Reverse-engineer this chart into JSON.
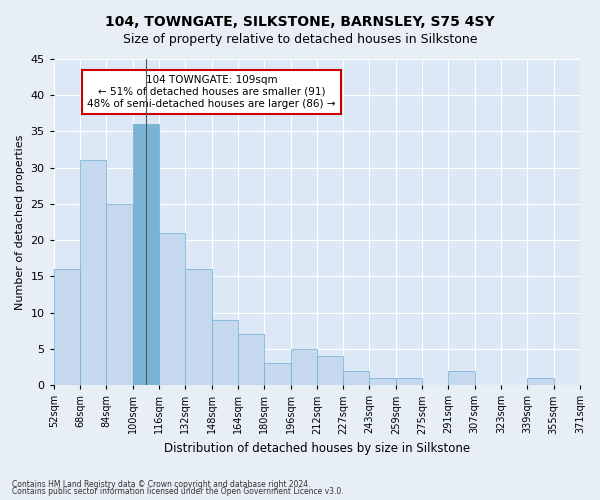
{
  "title": "104, TOWNGATE, SILKSTONE, BARNSLEY, S75 4SY",
  "subtitle": "Size of property relative to detached houses in Silkstone",
  "xlabel": "Distribution of detached houses by size in Silkstone",
  "ylabel": "Number of detached properties",
  "bar_values": [
    16,
    31,
    25,
    36,
    21,
    16,
    9,
    7,
    3,
    5,
    4,
    2,
    1,
    1,
    0,
    2,
    0,
    0,
    1,
    0
  ],
  "bar_labels": [
    "52sqm",
    "68sqm",
    "84sqm",
    "100sqm",
    "116sqm",
    "132sqm",
    "148sqm",
    "164sqm",
    "180sqm",
    "196sqm",
    "212sqm",
    "227sqm",
    "243sqm",
    "259sqm",
    "275sqm",
    "291sqm",
    "307sqm",
    "323sqm",
    "339sqm",
    "355sqm",
    "371sqm"
  ],
  "bar_colors_default": "#c5d8ed",
  "bar_edge_color": "#6baed6",
  "highlight_bar_index": 3,
  "highlight_color": "#7ab3d4",
  "subject_bin_index": 3,
  "annotation_lines": [
    "104 TOWNGATE: 109sqm",
    "← 51% of detached houses are smaller (91)",
    "48% of semi-detached houses are larger (86) →"
  ],
  "annotation_box_color": "#ffffff",
  "annotation_box_edge": "#cc0000",
  "ylim": [
    0,
    45
  ],
  "yticks": [
    0,
    5,
    10,
    15,
    20,
    25,
    30,
    35,
    40,
    45
  ],
  "background_color": "#e8eef5",
  "plot_bg_color": "#dce8f5",
  "grid_color": "#ffffff",
  "footnote1": "Contains HM Land Registry data © Crown copyright and database right 2024.",
  "footnote2": "Contains public sector information licensed under the Open Government Licence v3.0."
}
